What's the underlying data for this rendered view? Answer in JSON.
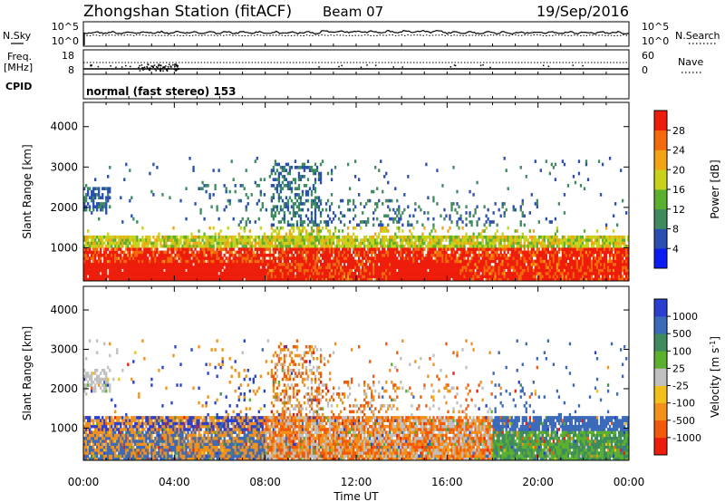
{
  "header": {
    "title": "Zhongshan Station (fitACF)",
    "beam": "Beam 07",
    "date": "19/Sep/2016"
  },
  "noise_panel": {
    "left_label": "N.Sky",
    "right_label": "N.Search",
    "left_ticks": [
      "10^5",
      "10^0"
    ],
    "right_ticks": [
      "10^5",
      "10^0"
    ]
  },
  "freq_panel": {
    "left_label_line1": "Freq.",
    "left_label_line2": "[MHz]",
    "right_label": "Nave",
    "left_ticks": [
      "18",
      "8"
    ],
    "right_ticks": [
      "60",
      "0"
    ]
  },
  "cpid": {
    "label": "CPID",
    "text": "normal (fast stereo) 153"
  },
  "x_axis": {
    "title": "Time UT",
    "ticks": [
      "00:00",
      "04:00",
      "08:00",
      "12:00",
      "16:00",
      "20:00",
      "00:00"
    ],
    "hours": [
      0,
      4,
      8,
      12,
      16,
      20,
      24
    ]
  },
  "chart_data": [
    {
      "type": "heatmap",
      "ylabel": "Slant Range [km]",
      "yticks": [
        1000,
        2000,
        3000,
        4000
      ],
      "ylim": [
        180,
        4600
      ],
      "xlim": [
        0,
        24
      ],
      "colorbar": {
        "label": "Power [dB]",
        "ticks": [
          "4",
          "8",
          "12",
          "16",
          "20",
          "24",
          "28"
        ],
        "colors": [
          "#0a1cf2",
          "#2a4fb0",
          "#3f8a5e",
          "#5cb030",
          "#c8d21a",
          "#f2a514",
          "#f26a0a",
          "#ee1c0a"
        ]
      }
    },
    {
      "type": "heatmap",
      "ylabel": "Slant Range [km]",
      "yticks": [
        1000,
        2000,
        3000,
        4000
      ],
      "ylim": [
        180,
        4600
      ],
      "xlim": [
        0,
        24
      ],
      "colorbar": {
        "label": "Velocity [m s^-1]",
        "ticks": [
          "1000",
          "500",
          "100",
          "25",
          "-25",
          "-100",
          "-500",
          "-1000"
        ],
        "colors": [
          "#2a3fd0",
          "#3a6ab8",
          "#3f8a5e",
          "#5cb030",
          "#c0c0c0",
          "#f2c01a",
          "#f2901a",
          "#f25a0a",
          "#ee1c0a"
        ]
      }
    }
  ]
}
